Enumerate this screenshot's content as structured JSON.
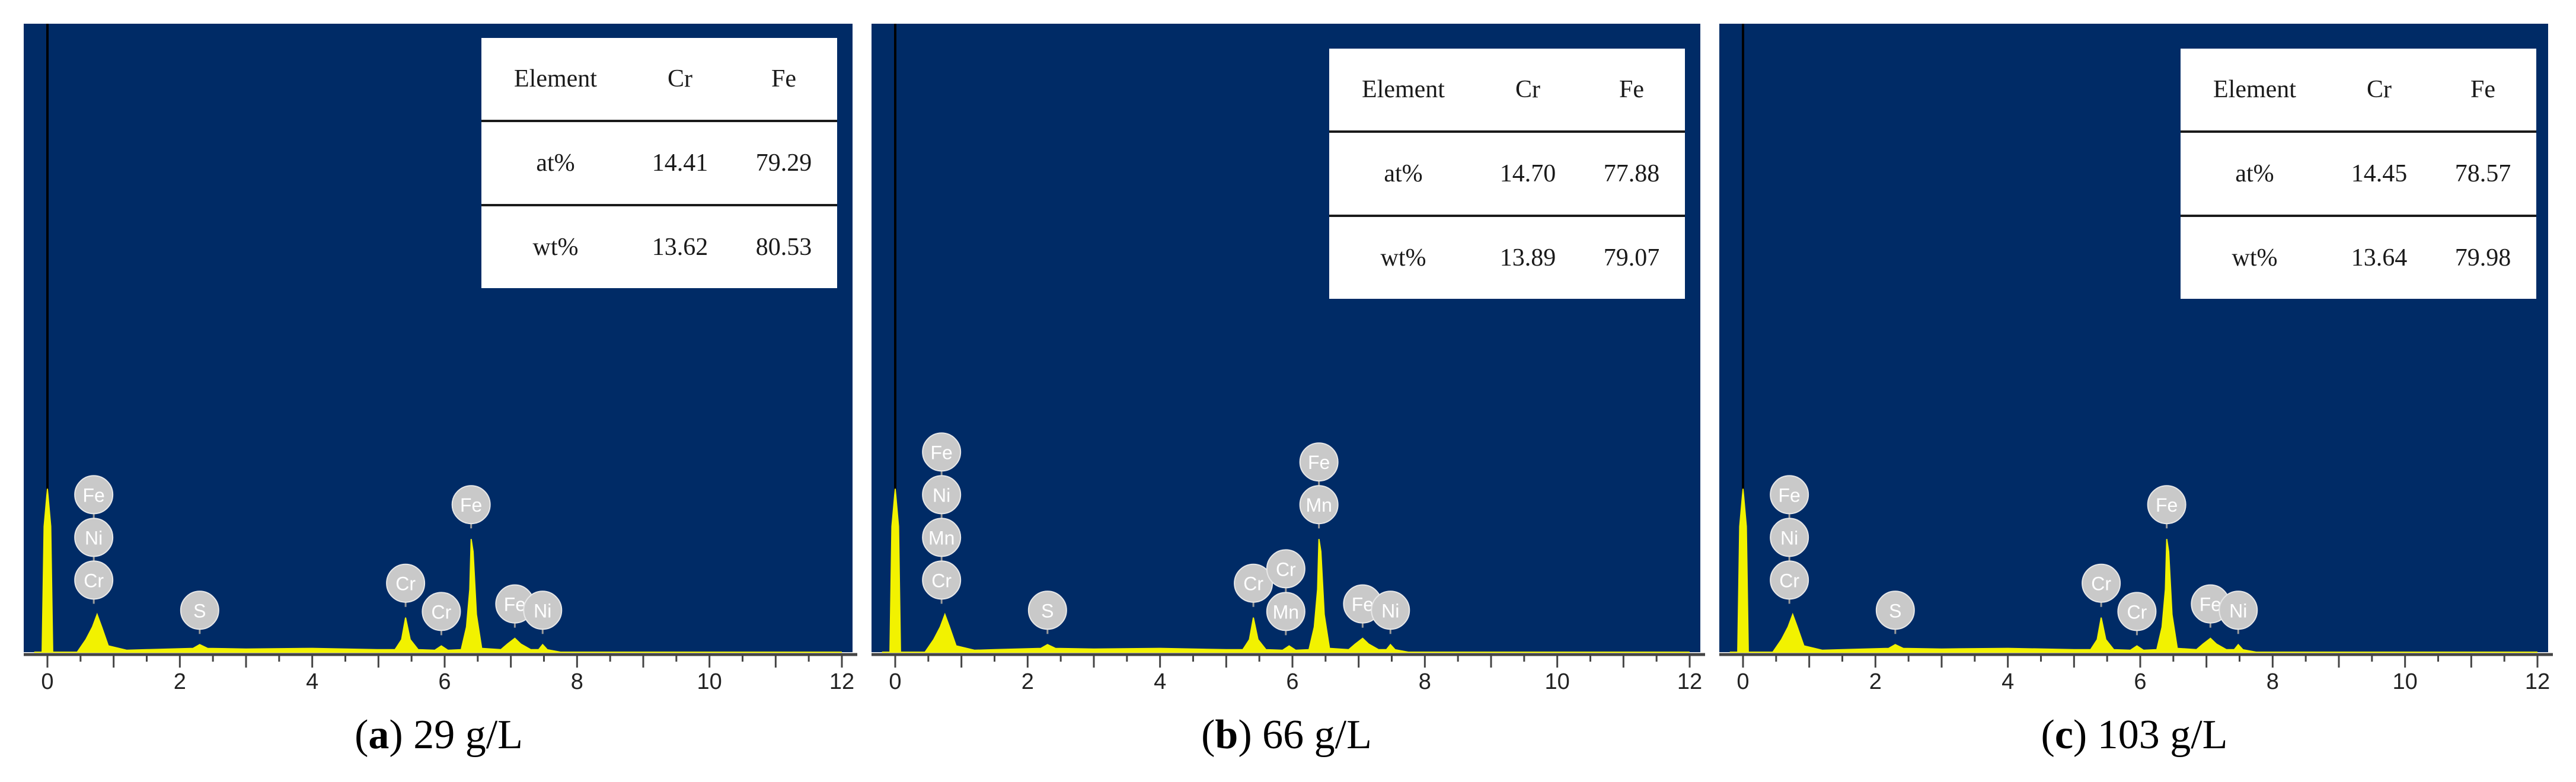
{
  "colors": {
    "background": "#002b66",
    "spectrum": "#f2f200",
    "label_fill": "#c9c9c9",
    "label_text": "#ffffff",
    "axis": "#444444"
  },
  "chart_data": [
    {
      "type": "line",
      "caption_letter": "a",
      "caption_value": "29 g/L",
      "xlim": [
        0,
        12
      ],
      "xticks": [
        "0",
        "2",
        "4",
        "6",
        "8",
        "10",
        "12"
      ],
      "ylim": [
        0,
        100
      ],
      "spectrum": [
        [
          -0.2,
          0
        ],
        [
          -0.08,
          0
        ],
        [
          -0.05,
          20
        ],
        [
          0,
          26
        ],
        [
          0.05,
          20
        ],
        [
          0.08,
          0
        ],
        [
          0.45,
          0
        ],
        [
          0.58,
          2
        ],
        [
          0.68,
          4
        ],
        [
          0.75,
          6
        ],
        [
          0.82,
          4
        ],
        [
          0.92,
          1
        ],
        [
          1.2,
          0.3
        ],
        [
          1.5,
          0.4
        ],
        [
          2.2,
          0.6
        ],
        [
          2.3,
          1.2
        ],
        [
          2.42,
          0.6
        ],
        [
          3,
          0.5
        ],
        [
          4,
          0.6
        ],
        [
          5,
          0.4
        ],
        [
          5.25,
          0.4
        ],
        [
          5.35,
          2
        ],
        [
          5.41,
          5.5
        ],
        [
          5.48,
          2
        ],
        [
          5.6,
          0.4
        ],
        [
          5.85,
          0.3
        ],
        [
          5.95,
          1.0
        ],
        [
          6.05,
          0.3
        ],
        [
          6.25,
          0.4
        ],
        [
          6.33,
          4
        ],
        [
          6.38,
          10
        ],
        [
          6.4,
          18
        ],
        [
          6.43,
          16
        ],
        [
          6.48,
          6
        ],
        [
          6.56,
          0.6
        ],
        [
          6.85,
          0.4
        ],
        [
          6.95,
          1.3
        ],
        [
          7.06,
          2.2
        ],
        [
          7.15,
          1.3
        ],
        [
          7.3,
          0.4
        ],
        [
          7.42,
          0.4
        ],
        [
          7.48,
          1.2
        ],
        [
          7.55,
          0.4
        ],
        [
          7.75,
          0
        ],
        [
          12,
          0
        ]
      ],
      "peaks": [
        {
          "x": 0.7,
          "labels": [
            "Cr",
            "Ni",
            "Fe"
          ]
        },
        {
          "x": 2.3,
          "labels": [
            "S"
          ]
        },
        {
          "x": 5.41,
          "labels": [
            "Cr"
          ]
        },
        {
          "x": 5.95,
          "labels": [
            "Cr"
          ]
        },
        {
          "x": 6.4,
          "labels": [
            "Fe"
          ]
        },
        {
          "x": 7.06,
          "labels": [
            "Fe"
          ]
        },
        {
          "x": 7.48,
          "labels": [
            "Ni"
          ]
        }
      ],
      "table": {
        "header": [
          "Element",
          "Cr",
          "Fe"
        ],
        "rows": [
          [
            "at%",
            "14.41",
            "79.29"
          ],
          [
            "wt%",
            "13.62",
            "80.53"
          ]
        ]
      }
    },
    {
      "type": "line",
      "caption_letter": "b",
      "caption_value": "66 g/L",
      "xlim": [
        0,
        12
      ],
      "xticks": [
        "0",
        "2",
        "4",
        "6",
        "8",
        "10",
        "12"
      ],
      "ylim": [
        0,
        100
      ],
      "spectrum": [
        [
          -0.2,
          0
        ],
        [
          -0.08,
          0
        ],
        [
          -0.05,
          20
        ],
        [
          0,
          26
        ],
        [
          0.05,
          20
        ],
        [
          0.08,
          0
        ],
        [
          0.45,
          0
        ],
        [
          0.58,
          2
        ],
        [
          0.68,
          4
        ],
        [
          0.75,
          6
        ],
        [
          0.82,
          4
        ],
        [
          0.92,
          1
        ],
        [
          1.2,
          0.3
        ],
        [
          1.5,
          0.4
        ],
        [
          2.2,
          0.6
        ],
        [
          2.3,
          1.2
        ],
        [
          2.42,
          0.6
        ],
        [
          3,
          0.5
        ],
        [
          4,
          0.6
        ],
        [
          5,
          0.4
        ],
        [
          5.25,
          0.4
        ],
        [
          5.35,
          2
        ],
        [
          5.41,
          5.5
        ],
        [
          5.48,
          2
        ],
        [
          5.6,
          0.4
        ],
        [
          5.85,
          0.3
        ],
        [
          5.95,
          1.0
        ],
        [
          6.05,
          0.3
        ],
        [
          6.25,
          0.4
        ],
        [
          6.33,
          4
        ],
        [
          6.38,
          10
        ],
        [
          6.4,
          18
        ],
        [
          6.43,
          16
        ],
        [
          6.48,
          6
        ],
        [
          6.56,
          0.6
        ],
        [
          6.85,
          0.4
        ],
        [
          6.95,
          1.3
        ],
        [
          7.06,
          2.2
        ],
        [
          7.15,
          1.3
        ],
        [
          7.3,
          0.4
        ],
        [
          7.42,
          0.4
        ],
        [
          7.48,
          1.2
        ],
        [
          7.55,
          0.4
        ],
        [
          7.75,
          0
        ],
        [
          12,
          0
        ]
      ],
      "peaks": [
        {
          "x": 0.7,
          "labels": [
            "Cr",
            "Mn",
            "Ni",
            "Fe"
          ]
        },
        {
          "x": 2.3,
          "labels": [
            "S"
          ]
        },
        {
          "x": 5.41,
          "labels": [
            "Cr"
          ]
        },
        {
          "x": 5.9,
          "labels": [
            "Mn",
            "Cr"
          ]
        },
        {
          "x": 6.4,
          "labels": [
            "Mn",
            "Fe"
          ]
        },
        {
          "x": 7.06,
          "labels": [
            "Fe"
          ]
        },
        {
          "x": 7.48,
          "labels": [
            "Ni"
          ]
        }
      ],
      "table": {
        "header": [
          "Element",
          "Cr",
          "Fe"
        ],
        "rows": [
          [
            "at%",
            "14.70",
            "77.88"
          ],
          [
            "wt%",
            "13.89",
            "79.07"
          ]
        ]
      }
    },
    {
      "type": "line",
      "caption_letter": "c",
      "caption_value": "103 g/L",
      "xlim": [
        0,
        12
      ],
      "xticks": [
        "0",
        "2",
        "4",
        "6",
        "8",
        "10",
        "12"
      ],
      "ylim": [
        0,
        100
      ],
      "spectrum": [
        [
          -0.2,
          0
        ],
        [
          -0.08,
          0
        ],
        [
          -0.05,
          20
        ],
        [
          0,
          26
        ],
        [
          0.05,
          20
        ],
        [
          0.08,
          0
        ],
        [
          0.45,
          0
        ],
        [
          0.58,
          2
        ],
        [
          0.68,
          4
        ],
        [
          0.75,
          6
        ],
        [
          0.82,
          4
        ],
        [
          0.92,
          1
        ],
        [
          1.2,
          0.3
        ],
        [
          1.5,
          0.4
        ],
        [
          2.2,
          0.6
        ],
        [
          2.3,
          1.2
        ],
        [
          2.42,
          0.6
        ],
        [
          3,
          0.5
        ],
        [
          4,
          0.6
        ],
        [
          5,
          0.4
        ],
        [
          5.25,
          0.4
        ],
        [
          5.35,
          2
        ],
        [
          5.41,
          5.5
        ],
        [
          5.48,
          2
        ],
        [
          5.6,
          0.4
        ],
        [
          5.85,
          0.3
        ],
        [
          5.95,
          1.0
        ],
        [
          6.05,
          0.3
        ],
        [
          6.25,
          0.4
        ],
        [
          6.33,
          4
        ],
        [
          6.38,
          10
        ],
        [
          6.4,
          18
        ],
        [
          6.43,
          16
        ],
        [
          6.48,
          6
        ],
        [
          6.56,
          0.6
        ],
        [
          6.85,
          0.4
        ],
        [
          6.95,
          1.3
        ],
        [
          7.06,
          2.2
        ],
        [
          7.15,
          1.3
        ],
        [
          7.3,
          0.4
        ],
        [
          7.42,
          0.4
        ],
        [
          7.48,
          1.2
        ],
        [
          7.55,
          0.4
        ],
        [
          7.75,
          0
        ],
        [
          12,
          0
        ]
      ],
      "peaks": [
        {
          "x": 0.7,
          "labels": [
            "Cr",
            "Ni",
            "Fe"
          ]
        },
        {
          "x": 2.3,
          "labels": [
            "S"
          ]
        },
        {
          "x": 5.41,
          "labels": [
            "Cr"
          ]
        },
        {
          "x": 5.95,
          "labels": [
            "Cr"
          ]
        },
        {
          "x": 6.4,
          "labels": [
            "Fe"
          ]
        },
        {
          "x": 7.06,
          "labels": [
            "Fe"
          ]
        },
        {
          "x": 7.48,
          "labels": [
            "Ni"
          ]
        }
      ],
      "table": {
        "header": [
          "Element",
          "Cr",
          "Fe"
        ],
        "rows": [
          [
            "at%",
            "14.45",
            "78.57"
          ],
          [
            "wt%",
            "13.64",
            "79.98"
          ]
        ]
      }
    }
  ]
}
